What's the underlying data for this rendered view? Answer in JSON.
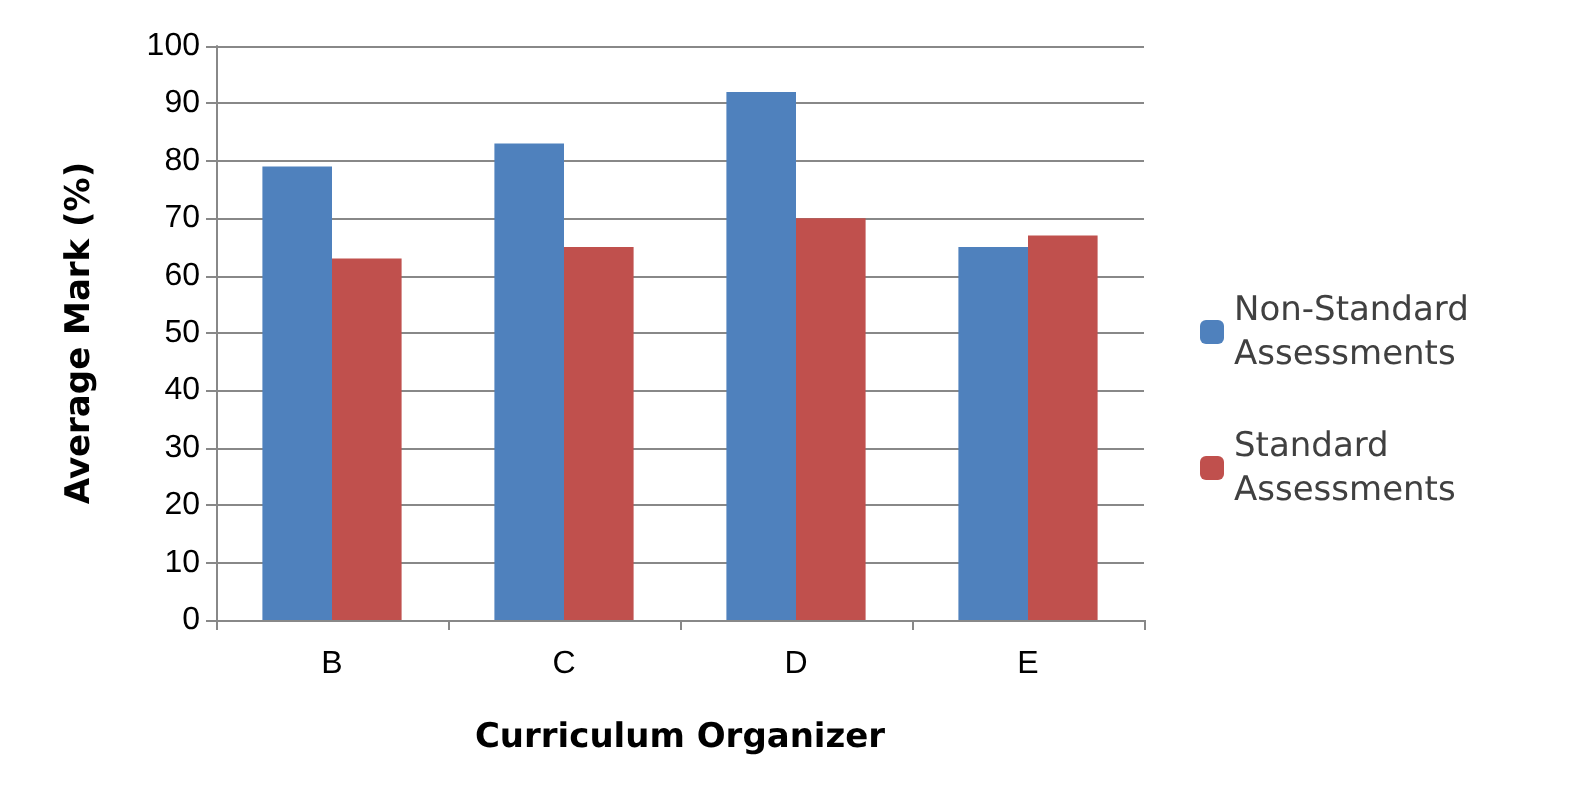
{
  "chart_data": {
    "type": "bar",
    "xlabel": "Curriculum Organizer",
    "ylabel": "Average Mark (%)",
    "categories": [
      "B",
      "C",
      "D",
      "E"
    ],
    "series": [
      {
        "name": "Non-Standard Assessments",
        "color": "#4f81bd",
        "values": [
          79,
          83,
          92,
          65
        ]
      },
      {
        "name": "Standard Assessments",
        "color": "#c0504d",
        "values": [
          63,
          65,
          70,
          67
        ]
      }
    ],
    "ylim": [
      0,
      100
    ],
    "yticks": [
      0,
      10,
      20,
      30,
      40,
      50,
      60,
      70,
      80,
      90,
      100
    ],
    "grid": "y",
    "legend": "right"
  }
}
